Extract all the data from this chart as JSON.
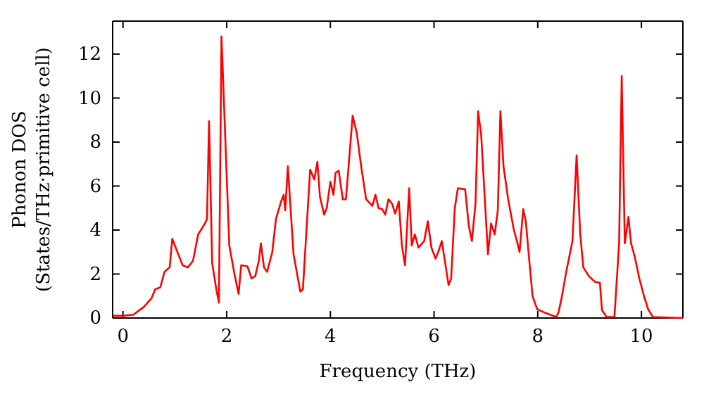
{
  "chart_data": {
    "type": "line",
    "xlabel": "Frequency (THz)",
    "ylabel": "Phonon DOS\n(States/THz·primitive cell)",
    "xlim": [
      -0.2,
      10.8
    ],
    "ylim": [
      0,
      13.5
    ],
    "xticks": [
      0,
      2,
      4,
      6,
      8,
      10
    ],
    "yticks": [
      0,
      2,
      4,
      6,
      8,
      10,
      12
    ],
    "grid": false,
    "marker": "none",
    "line_style": "solid",
    "series": [
      {
        "color": "#ff0000",
        "x": [
          -0.2,
          0,
          0.2,
          0.4,
          0.55,
          0.62,
          0.72,
          0.8,
          0.9,
          0.95,
          1.05,
          1.15,
          1.25,
          1.35,
          1.45,
          1.58,
          1.62,
          1.66,
          1.72,
          1.8,
          1.85,
          1.9,
          2.05,
          2.15,
          2.23,
          2.28,
          2.4,
          2.48,
          2.55,
          2.62,
          2.66,
          2.72,
          2.78,
          2.88,
          2.95,
          3.05,
          3.1,
          3.13,
          3.18,
          3.29,
          3.42,
          3.47,
          3.61,
          3.69,
          3.75,
          3.8,
          3.88,
          3.93,
          4.0,
          4.06,
          4.1,
          4.16,
          4.24,
          4.3,
          4.43,
          4.51,
          4.6,
          4.69,
          4.81,
          4.87,
          4.93,
          5.0,
          5.06,
          5.12,
          5.19,
          5.25,
          5.32,
          5.38,
          5.44,
          5.52,
          5.57,
          5.63,
          5.7,
          5.81,
          5.88,
          5.95,
          6.03,
          6.08,
          6.15,
          6.28,
          6.33,
          6.4,
          6.46,
          6.6,
          6.67,
          6.73,
          6.8,
          6.85,
          6.91,
          7.04,
          7.1,
          7.17,
          7.23,
          7.28,
          7.34,
          7.43,
          7.54,
          7.6,
          7.65,
          7.72,
          7.77,
          7.83,
          7.9,
          7.99,
          8.13,
          8.36,
          8.4,
          8.46,
          8.55,
          8.67,
          8.75,
          8.82,
          8.88,
          8.99,
          9.1,
          9.2,
          9.24,
          9.33,
          9.48,
          9.57,
          9.62,
          9.68,
          9.75,
          9.8,
          9.87,
          9.96,
          10.05,
          10.13,
          10.22,
          10.8
        ],
        "values": [
          0.1,
          0.1,
          0.15,
          0.5,
          0.9,
          1.3,
          1.4,
          2.1,
          2.3,
          3.6,
          3.0,
          2.4,
          2.3,
          2.6,
          3.8,
          4.3,
          4.5,
          8.95,
          2.5,
          1.3,
          0.7,
          12.8,
          3.3,
          2.0,
          1.1,
          2.4,
          2.35,
          1.8,
          1.9,
          2.6,
          3.4,
          2.3,
          2.1,
          3.0,
          4.5,
          5.3,
          5.6,
          4.9,
          6.9,
          2.9,
          1.2,
          1.3,
          6.75,
          6.3,
          7.1,
          5.5,
          4.7,
          5.0,
          6.2,
          5.6,
          6.6,
          6.7,
          5.4,
          5.4,
          9.2,
          8.4,
          6.8,
          5.4,
          5.1,
          5.6,
          5.0,
          4.95,
          4.7,
          5.4,
          5.2,
          4.75,
          5.3,
          3.3,
          2.4,
          5.9,
          3.3,
          3.8,
          3.2,
          3.5,
          4.4,
          3.2,
          2.7,
          3.0,
          3.5,
          1.5,
          1.8,
          5.0,
          5.9,
          5.85,
          4.2,
          3.5,
          5.2,
          9.4,
          8.3,
          2.9,
          4.3,
          3.8,
          4.9,
          9.4,
          6.9,
          5.4,
          4.0,
          3.5,
          3.0,
          4.95,
          4.4,
          2.8,
          1.0,
          0.4,
          0.25,
          0.05,
          0.25,
          0.9,
          2.1,
          3.5,
          7.4,
          3.8,
          2.3,
          1.9,
          1.65,
          1.6,
          0.35,
          0.05,
          0.05,
          3.4,
          11.0,
          3.4,
          4.6,
          3.4,
          2.8,
          1.8,
          1.0,
          0.4,
          0.05,
          0
        ]
      }
    ]
  }
}
